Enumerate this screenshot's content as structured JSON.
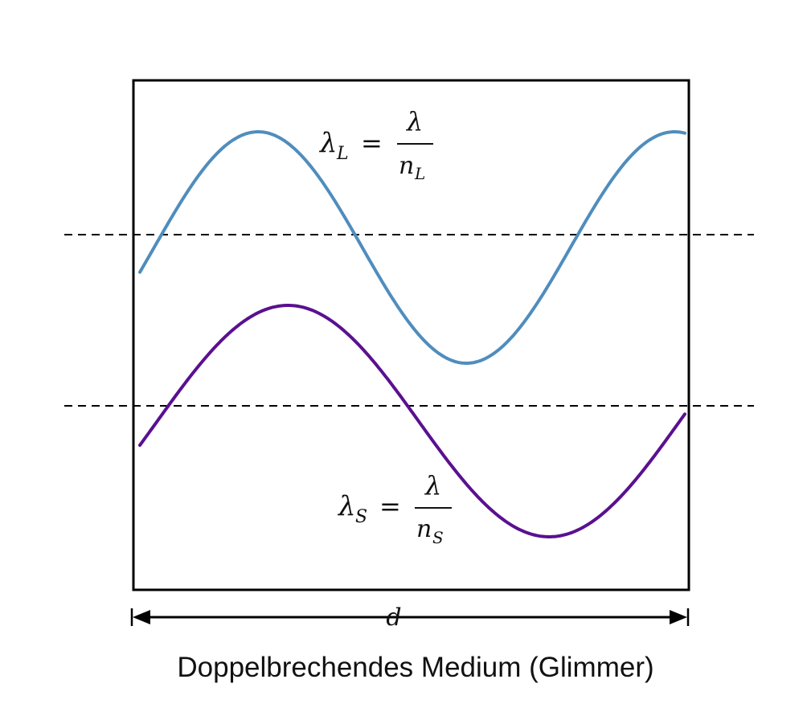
{
  "caption": "Doppelbrechendes Medium (Glimmer)",
  "thickness_label": "d",
  "formula_long": {
    "lhs_symbol": "λ",
    "lhs_subscript": "L",
    "equals": "=",
    "numerator": "λ",
    "denominator_symbol": "n",
    "denominator_subscript": "L"
  },
  "formula_short": {
    "lhs_symbol": "λ",
    "lhs_subscript": "S",
    "equals": "=",
    "numerator": "λ",
    "denominator_symbol": "n",
    "denominator_subscript": "S"
  },
  "colors": {
    "wave_long": "#4f8dbd",
    "wave_short": "#5a1090",
    "frame": "#000000",
    "dashed_lines": "#000000"
  }
}
